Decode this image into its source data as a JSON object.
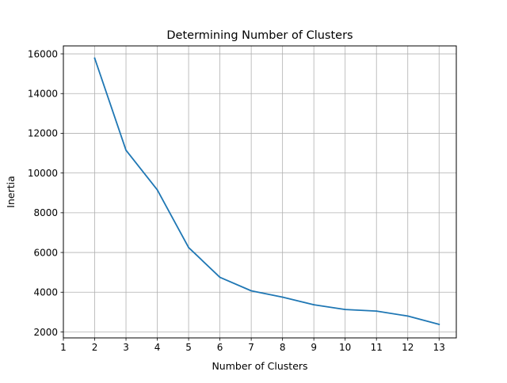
{
  "chart_data": {
    "type": "line",
    "title": "Determining Number of Clusters",
    "xlabel": "Number of Clusters",
    "ylabel": "Inertia",
    "xlim": [
      1,
      13.55
    ],
    "ylim": [
      1700,
      16400
    ],
    "x_ticks": [
      1,
      2,
      3,
      4,
      5,
      6,
      7,
      8,
      9,
      10,
      11,
      12,
      13
    ],
    "y_ticks": [
      2000,
      4000,
      6000,
      8000,
      10000,
      12000,
      14000,
      16000
    ],
    "grid": true,
    "line_color": "#1f77b4",
    "series": [
      {
        "x": [
          2,
          3,
          4,
          5,
          6,
          7,
          8,
          9,
          10,
          11,
          12,
          13
        ],
        "values": [
          15780,
          11150,
          9150,
          6250,
          4750,
          4070,
          3750,
          3370,
          3130,
          3050,
          2800,
          2380
        ]
      }
    ]
  }
}
